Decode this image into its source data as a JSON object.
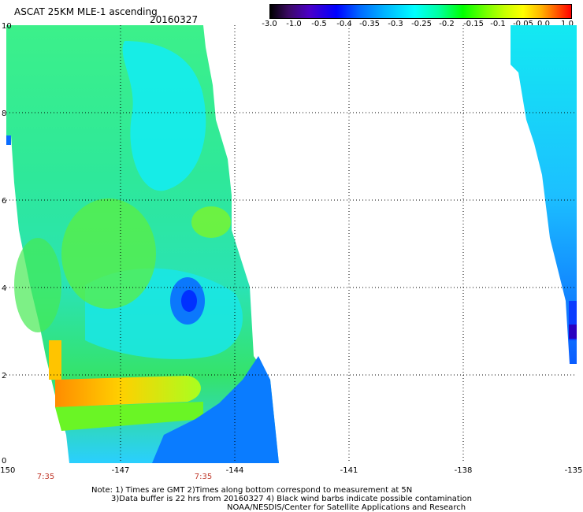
{
  "header": {
    "title": "ASCAT 25KM MLE-1 ascending",
    "date": "20160327"
  },
  "colorbar": {
    "labels": [
      "-3.0",
      "-1.0",
      "-0.5",
      "-0.4",
      "-0.35",
      "-0.3",
      "-0.25",
      "-0.2",
      "-0.15",
      "-0.1",
      "-0.05",
      "0.0",
      "1.0"
    ]
  },
  "axes": {
    "y_ticks": [
      "0",
      "2",
      "4",
      "6",
      "8",
      "10"
    ],
    "x_ticks": [
      "-150",
      "-147",
      "-144",
      "-141",
      "-138",
      "-135"
    ],
    "time_labels": [
      "7:35",
      "7:35"
    ]
  },
  "notes": {
    "line1": "Note: 1) Times are GMT 2)Times along bottom correspond to measurement at 5N",
    "line2": "3)Data buffer is 22 hrs from 20160327 4) Black wind barbs indicate possible contamination",
    "line3": "NOAA/NESDIS/Center for Satellite Applications and Research"
  },
  "colors": {
    "gridline": "#000000",
    "time_label": "#c0392b"
  }
}
